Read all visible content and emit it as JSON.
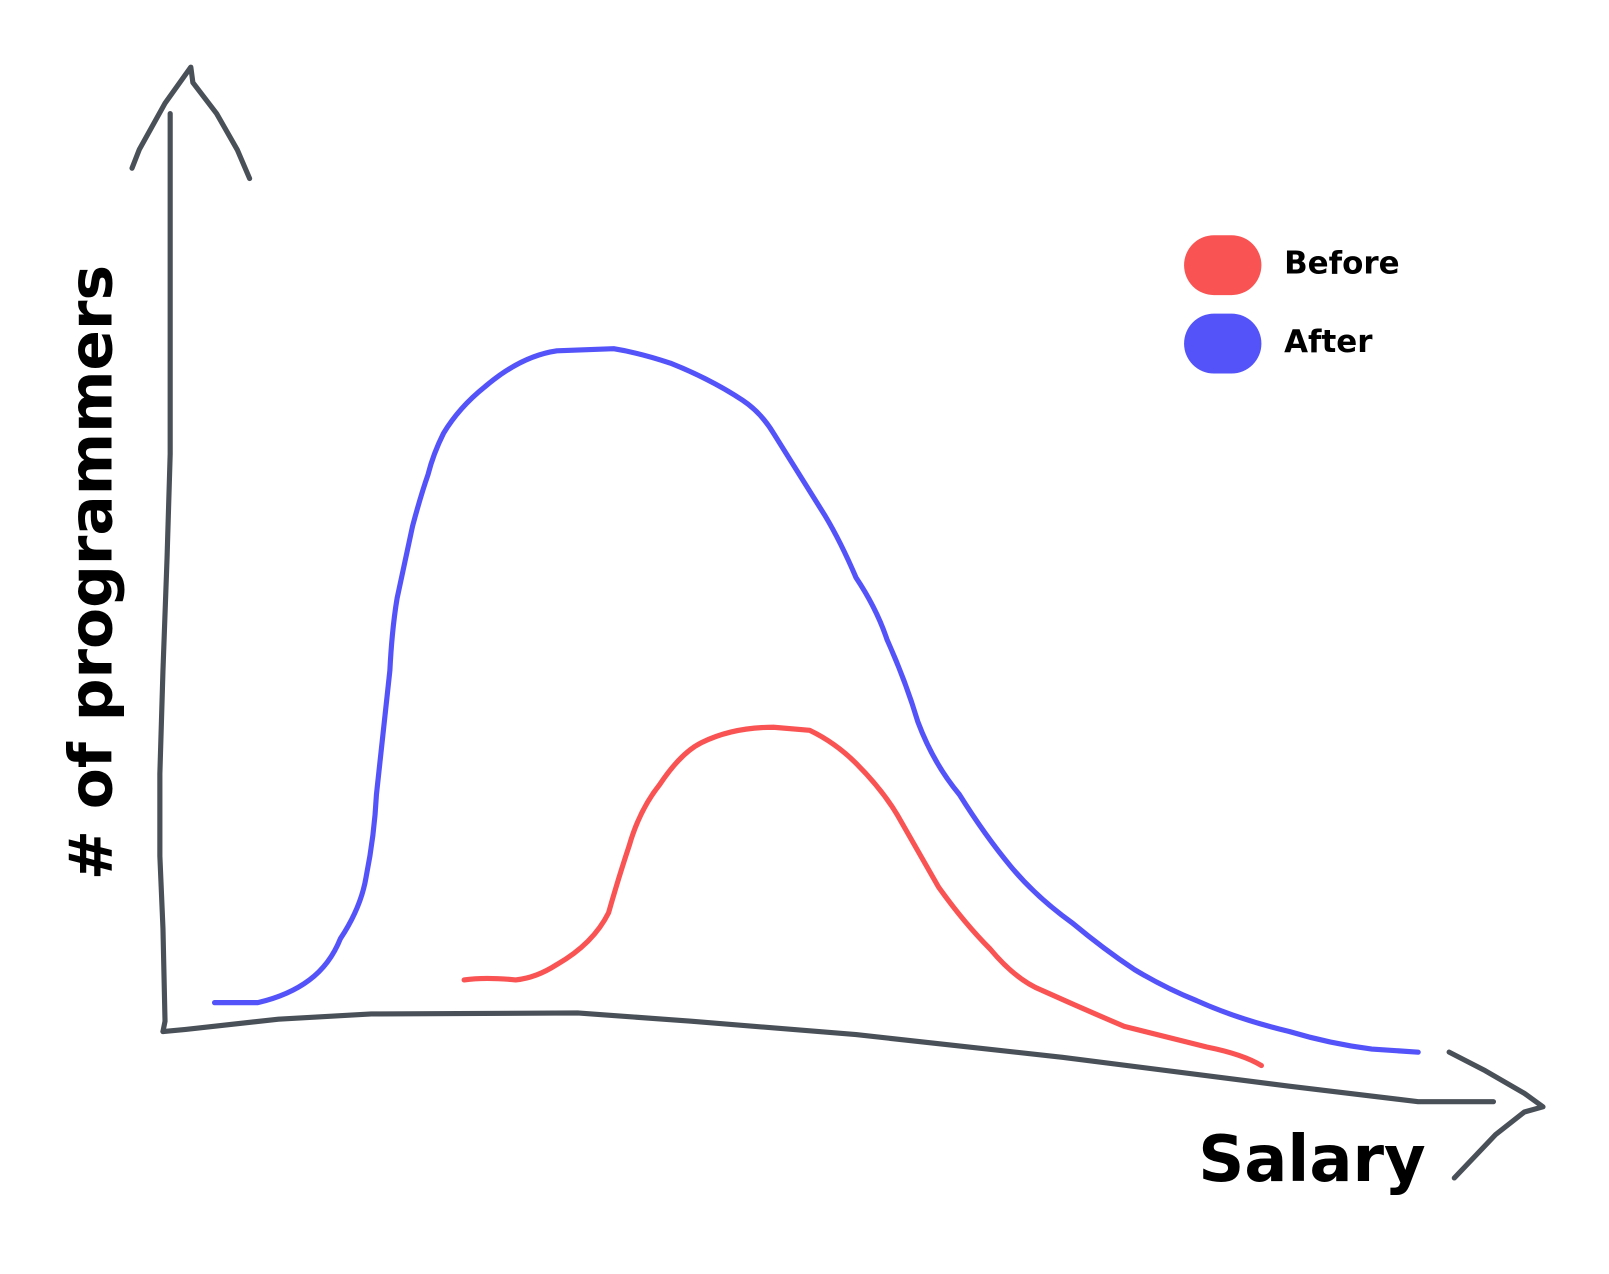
{
  "chart_data": {
    "type": "line",
    "x_label": "Salary",
    "y_label": "# of programmers",
    "series": [
      {
        "name": "Before",
        "color": "#f95353"
      },
      {
        "name": "After",
        "color": "#5353f9"
      }
    ]
  }
}
